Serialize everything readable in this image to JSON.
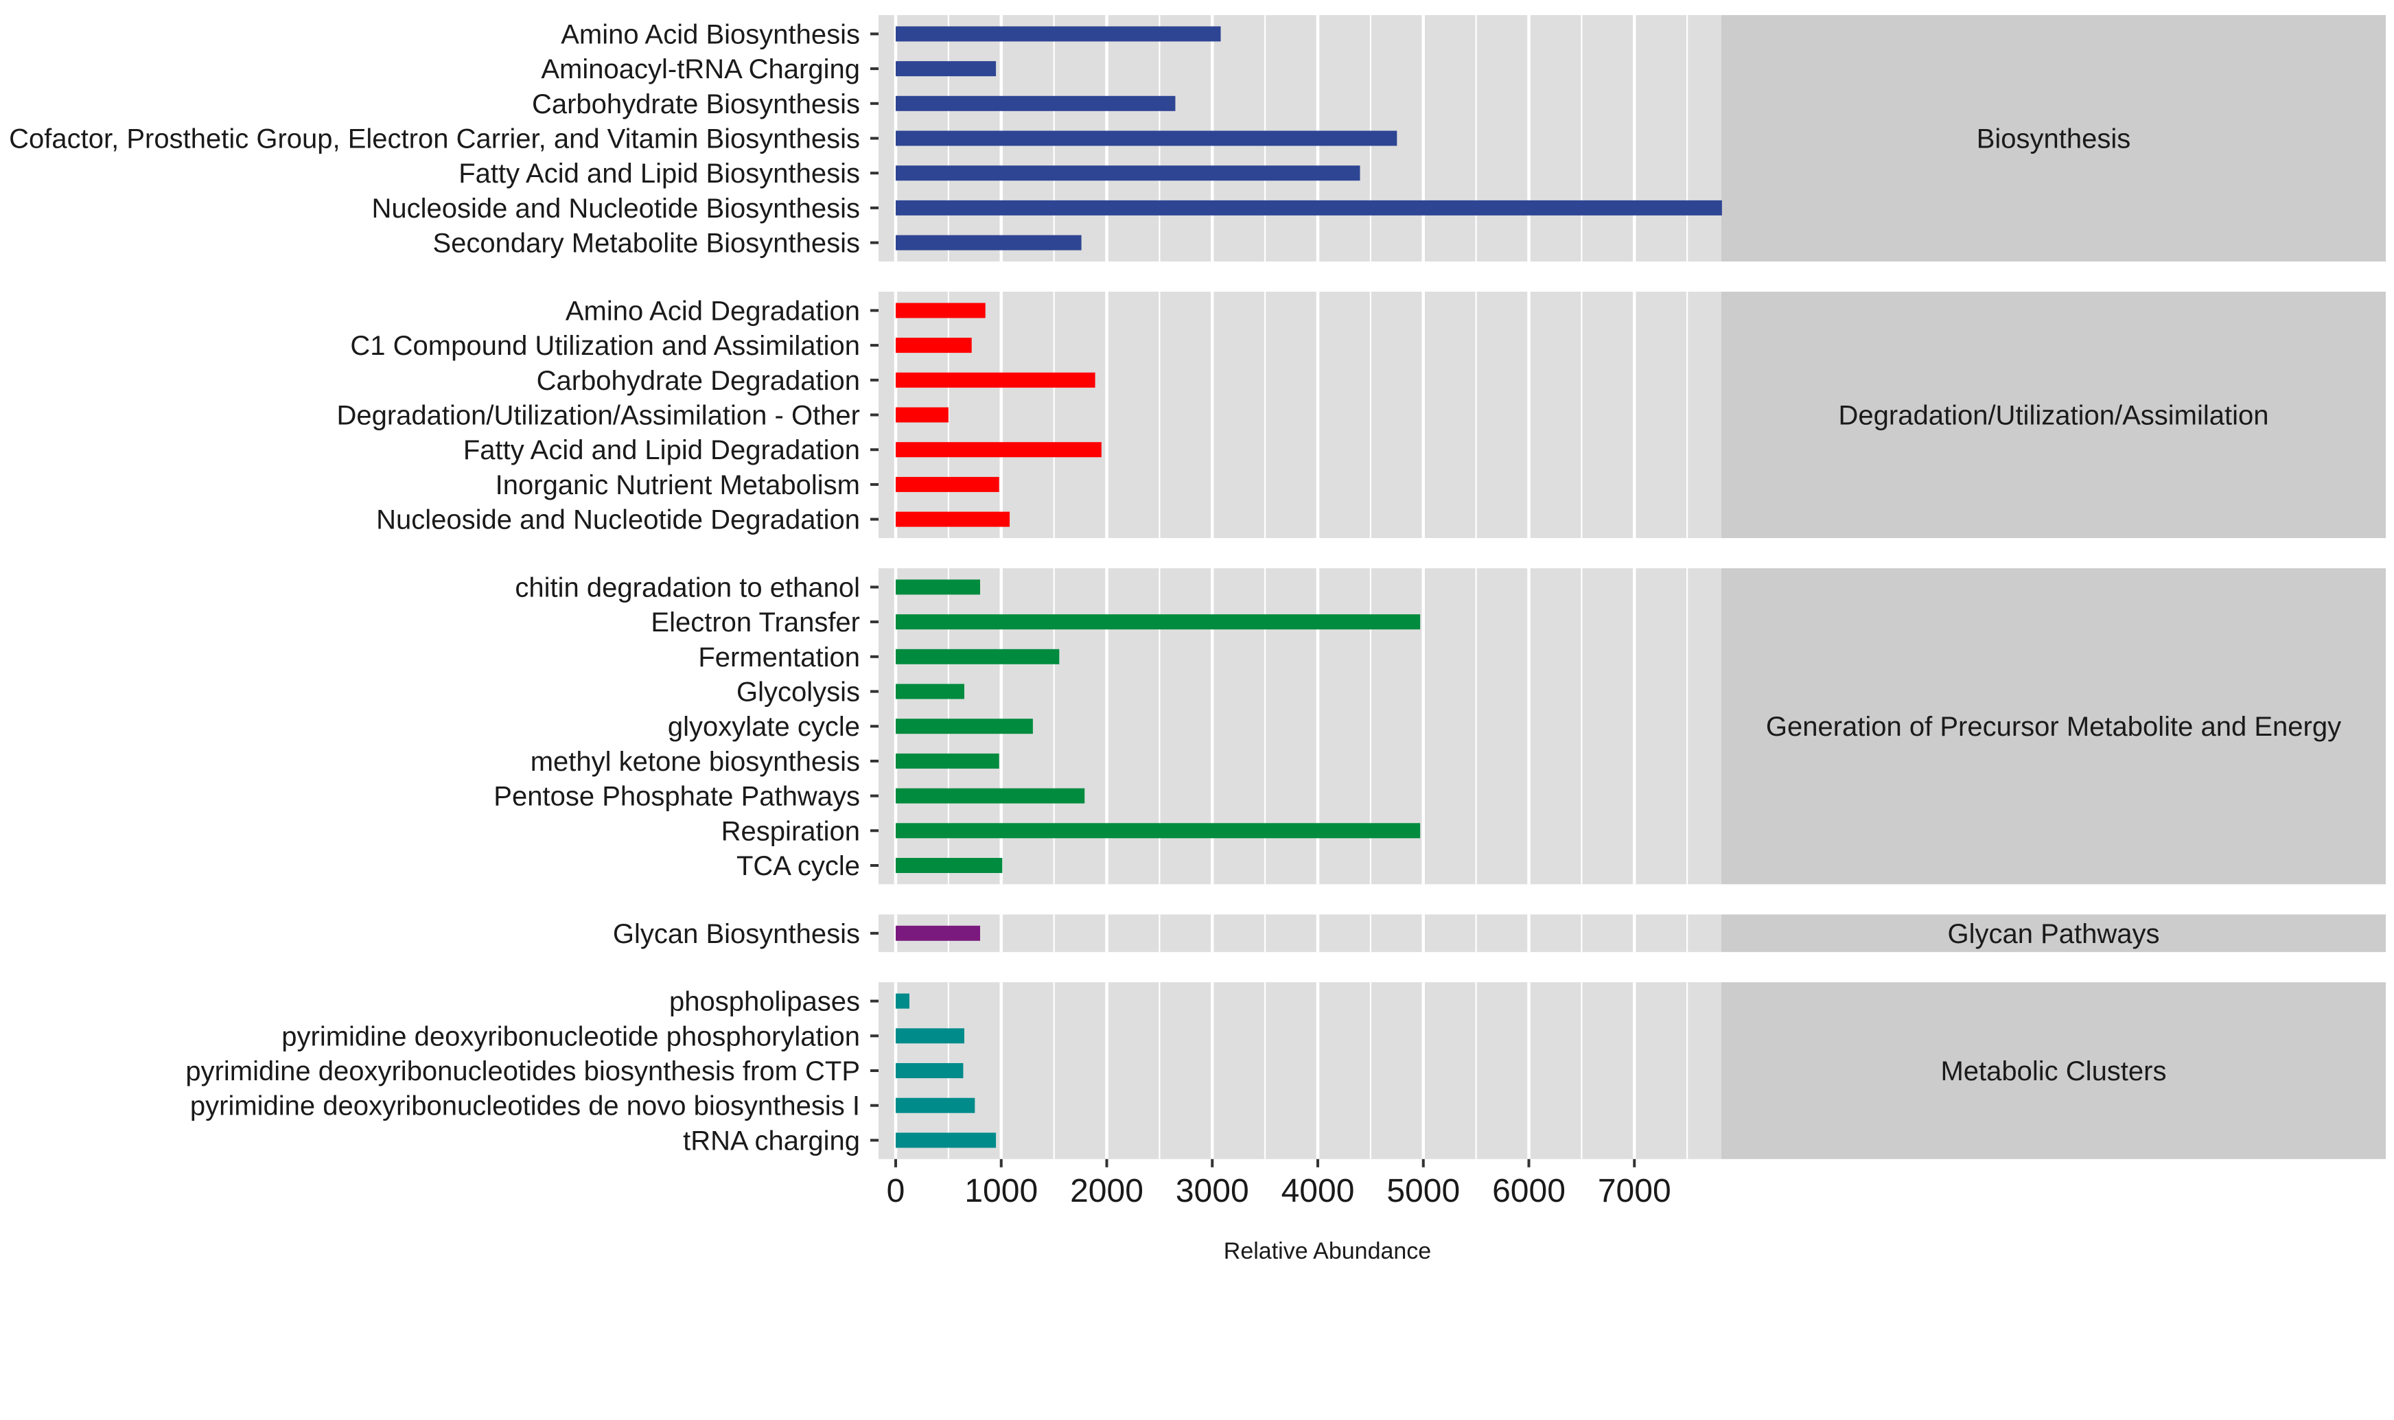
{
  "chart_data": {
    "type": "bar",
    "orientation": "horizontal",
    "xlabel": "Relative Abundance",
    "xlim": [
      -180,
      7800
    ],
    "xticks": [
      0,
      1000,
      2000,
      3000,
      4000,
      5000,
      6000,
      7000
    ],
    "grid": true,
    "facets": [
      {
        "label": "Biosynthesis",
        "color": "#2E4593",
        "categories": [
          "Amino Acid Biosynthesis",
          "Aminoacyl-tRNA Charging",
          "Carbohydrate Biosynthesis",
          "Cofactor, Prosthetic Group, Electron Carrier, and Vitamin Biosynthesis",
          "Fatty Acid and Lipid Biosynthesis",
          "Nucleoside and Nucleotide Biosynthesis",
          "Secondary Metabolite Biosynthesis"
        ],
        "values": [
          3080,
          950,
          2650,
          4750,
          4400,
          7830,
          1760
        ]
      },
      {
        "label": "Degradation/Utilization/Assimilation",
        "color": "#FF0000",
        "categories": [
          "Amino Acid Degradation",
          "C1 Compound Utilization and Assimilation",
          "Carbohydrate Degradation",
          "Degradation/Utilization/Assimilation - Other",
          "Fatty Acid and Lipid Degradation",
          "Inorganic Nutrient Metabolism",
          "Nucleoside and Nucleotide Degradation"
        ],
        "values": [
          850,
          720,
          1890,
          500,
          1950,
          980,
          1080
        ]
      },
      {
        "label": "Generation of Precursor Metabolite and Energy",
        "color": "#008B3E",
        "categories": [
          "chitin degradation to ethanol",
          "Electron Transfer",
          "Fermentation",
          "Glycolysis",
          "glyoxylate cycle",
          "methyl ketone biosynthesis",
          "Pentose Phosphate Pathways",
          "Respiration",
          "TCA cycle"
        ],
        "values": [
          800,
          4970,
          1550,
          650,
          1300,
          980,
          1790,
          4970,
          1010
        ]
      },
      {
        "label": "Glycan Pathways",
        "color": "#7B1A7E",
        "categories": [
          "Glycan Biosynthesis"
        ],
        "values": [
          800
        ]
      },
      {
        "label": "Metabolic Clusters",
        "color": "#008B8B",
        "categories": [
          "phospholipases",
          "pyrimidine deoxyribonucleotide phosphorylation",
          "pyrimidine deoxyribonucleotides biosynthesis from CTP",
          "pyrimidine deoxyribonucleotides de novo biosynthesis I",
          "tRNA charging"
        ],
        "values": [
          130,
          650,
          640,
          750,
          950
        ]
      }
    ]
  }
}
